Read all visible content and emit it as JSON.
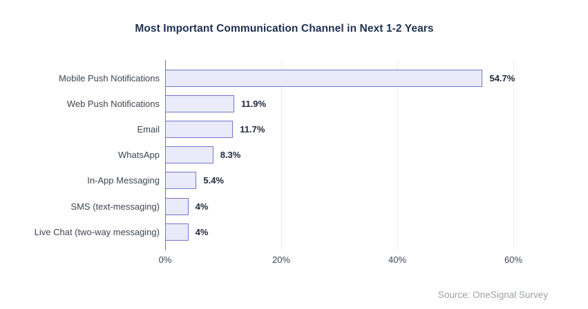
{
  "title": "Most Important Communication Channel in Next 1-2 Years",
  "source": "Source: OneSignal Survey",
  "chart_data": {
    "type": "bar",
    "orientation": "horizontal",
    "title": "Most Important Communication Channel in Next 1-2 Years",
    "categories": [
      "Mobile Push Notifications",
      "Web Push Notifications",
      "Email",
      "WhatsApp",
      "In-App Messaging",
      "SMS (text-messaging)",
      "Live Chat (two-way messaging)"
    ],
    "values": [
      54.7,
      11.9,
      11.7,
      8.3,
      5.4,
      4,
      4
    ],
    "value_labels": [
      "54.7%",
      "11.9%",
      "11.7%",
      "8.3%",
      "5.4%",
      "4%",
      "4%"
    ],
    "xlabel": "",
    "ylabel": "",
    "xlim": [
      0,
      67
    ],
    "x_tick_values": [
      0,
      20,
      40,
      60
    ],
    "x_tick_labels": [
      "0%",
      "20%",
      "40%",
      "60%"
    ],
    "grid": "vertical gridlines at ticks, no bottom axis line",
    "legend": "none",
    "annotation": "Source: OneSignal Survey"
  },
  "colors": {
    "title": "#1e3050",
    "category_label": "#3b4550",
    "value_label": "#20293a",
    "tick_label": "#3b4550",
    "bar_fill": "#eaeafa",
    "bar_border": "#7176ca",
    "axis_line": "#71777f",
    "gridline": "#ededf0",
    "source": "#999fa8"
  }
}
